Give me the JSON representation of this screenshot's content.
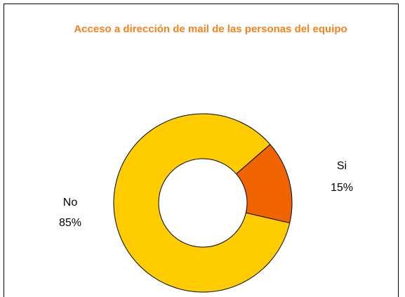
{
  "chart_data": {
    "type": "donut",
    "title": "Acceso a dirección de mail de las personas del equipo",
    "categories": [
      "Si",
      "No"
    ],
    "values": [
      15,
      85
    ],
    "value_labels": [
      "15%",
      "85%"
    ],
    "colors": [
      "#f06400",
      "#ffcc00"
    ]
  }
}
